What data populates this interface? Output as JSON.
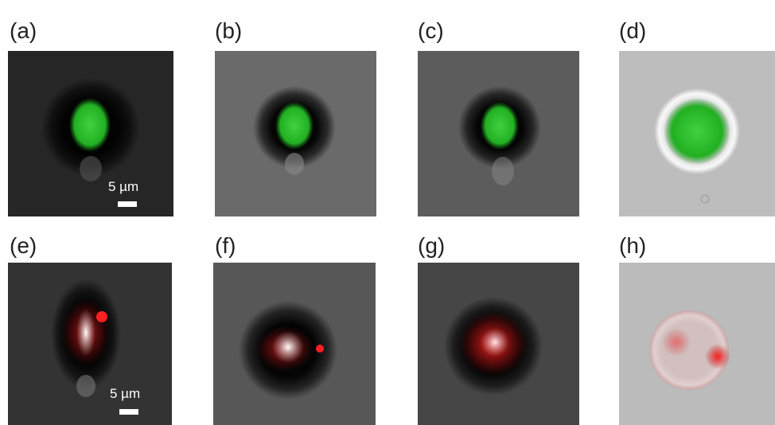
{
  "panels": [
    {
      "label": "(a)",
      "scale_bar": "5 µm"
    },
    {
      "label": "(b)"
    },
    {
      "label": "(c)"
    },
    {
      "label": "(d)"
    },
    {
      "label": "(e)",
      "scale_bar": "5 µm"
    },
    {
      "label": "(f)"
    },
    {
      "label": "(g)"
    },
    {
      "label": "(h)"
    }
  ]
}
